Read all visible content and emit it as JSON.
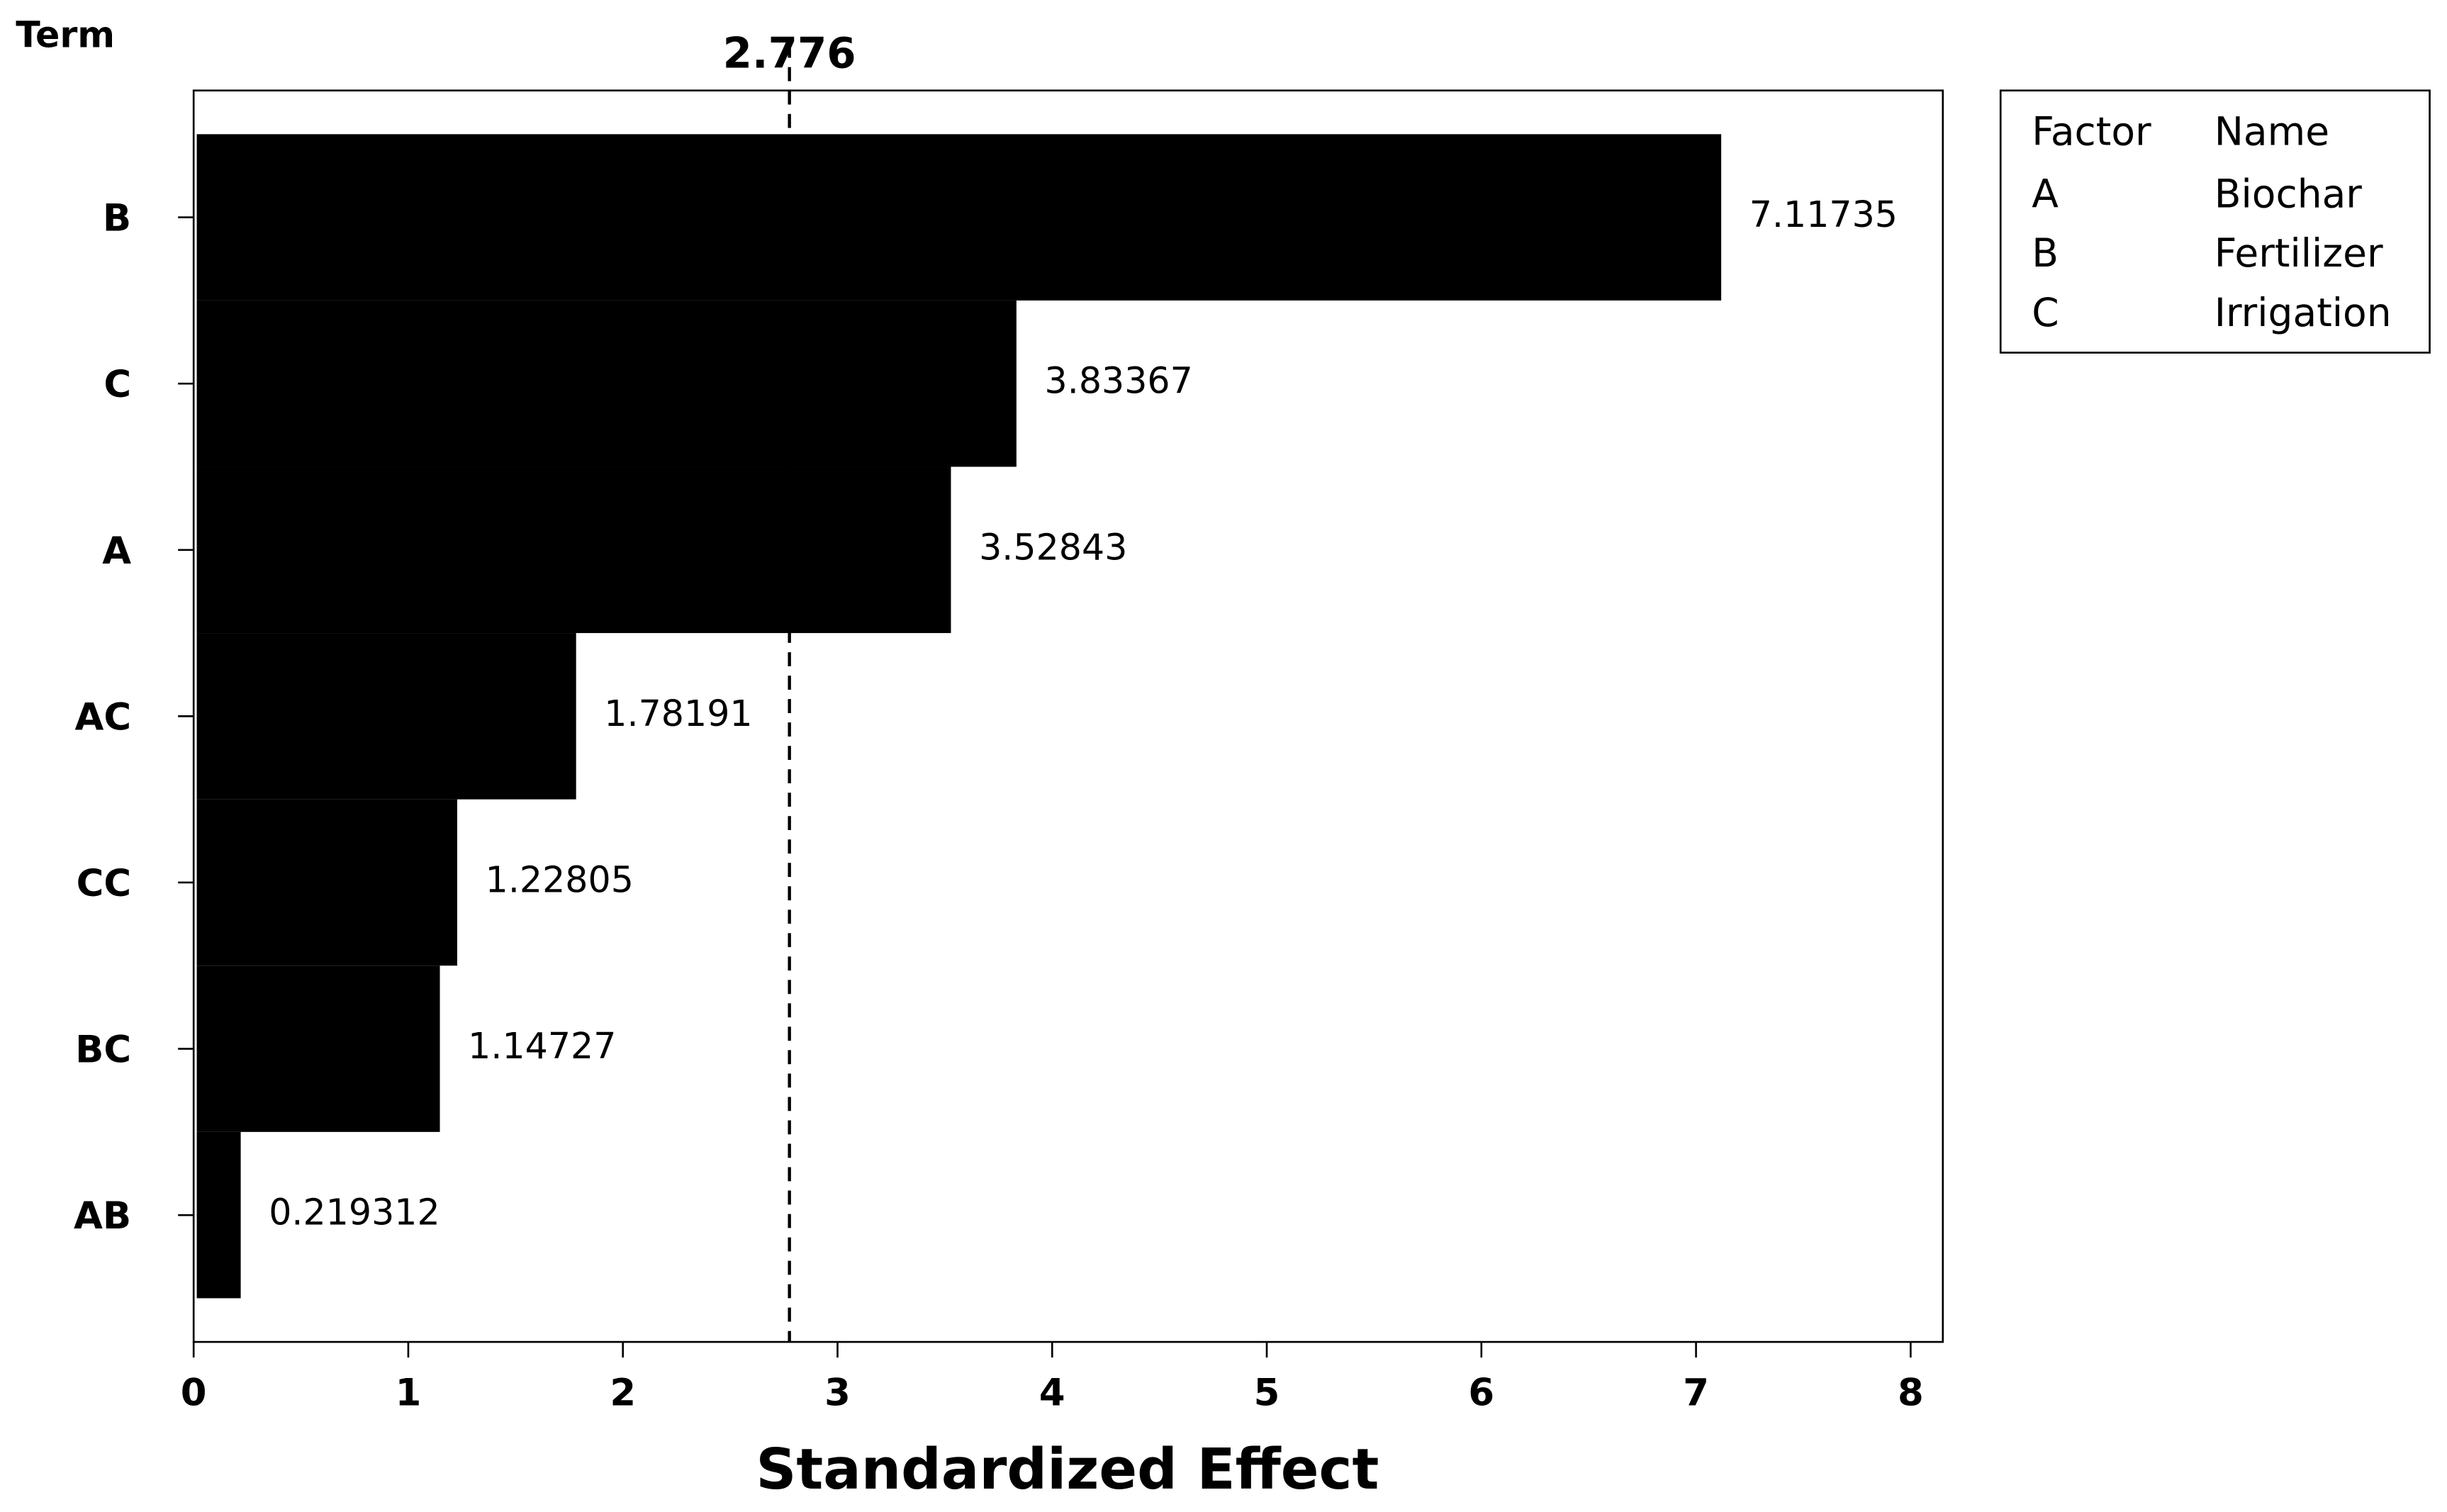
{
  "chart_data": {
    "type": "bar",
    "orientation": "horizontal",
    "y_axis_label": "Term",
    "x_axis_label": "Standardized Effect",
    "categories": [
      "B",
      "C",
      "A",
      "AC",
      "CC",
      "BC",
      "AB"
    ],
    "values": [
      7.11735,
      3.83367,
      3.52843,
      1.78191,
      1.22805,
      1.14727,
      0.219312
    ],
    "color": "#000000",
    "xlim": [
      0,
      8.15
    ],
    "xticks": [
      0,
      1,
      2,
      3,
      4,
      5,
      6,
      7,
      8
    ],
    "reference_line": 2.776
  },
  "legend_table": {
    "headers": [
      "Factor",
      "Name"
    ],
    "rows": [
      [
        "A",
        "Biochar"
      ],
      [
        "B",
        "Fertilizer"
      ],
      [
        "C",
        "Irrigation"
      ]
    ]
  }
}
